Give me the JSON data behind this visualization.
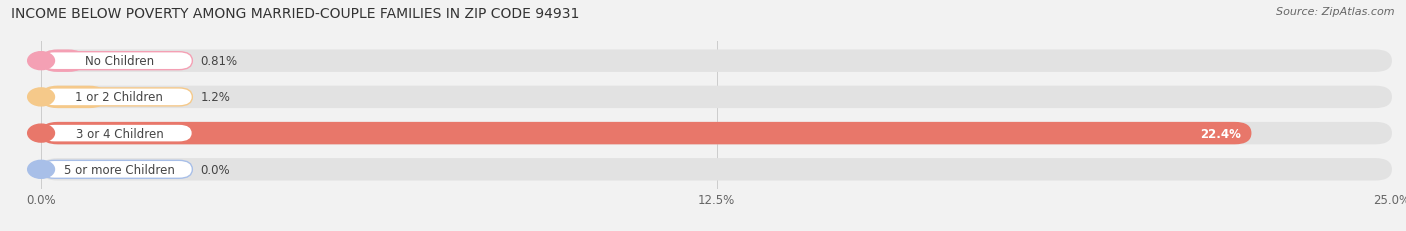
{
  "title": "INCOME BELOW POVERTY AMONG MARRIED-COUPLE FAMILIES IN ZIP CODE 94931",
  "source": "Source: ZipAtlas.com",
  "categories": [
    "No Children",
    "1 or 2 Children",
    "3 or 4 Children",
    "5 or more Children"
  ],
  "values": [
    0.81,
    1.2,
    22.4,
    0.0
  ],
  "labels": [
    "0.81%",
    "1.2%",
    "22.4%",
    "0.0%"
  ],
  "bar_colors": [
    "#f4a0b4",
    "#f5c98a",
    "#e8776a",
    "#a8bfe8"
  ],
  "label_bg_colors": [
    "#f4a0b4",
    "#f5c98a",
    "#e8776a",
    "#a8bfe8"
  ],
  "bg_color": "#f2f2f2",
  "bar_bg_color": "#e2e2e2",
  "xlim_max": 25.0,
  "xticks": [
    0.0,
    12.5,
    25.0
  ],
  "xticklabels": [
    "0.0%",
    "12.5%",
    "25.0%"
  ],
  "title_fontsize": 10,
  "label_fontsize": 8.5,
  "value_fontsize": 8.5,
  "source_fontsize": 8
}
